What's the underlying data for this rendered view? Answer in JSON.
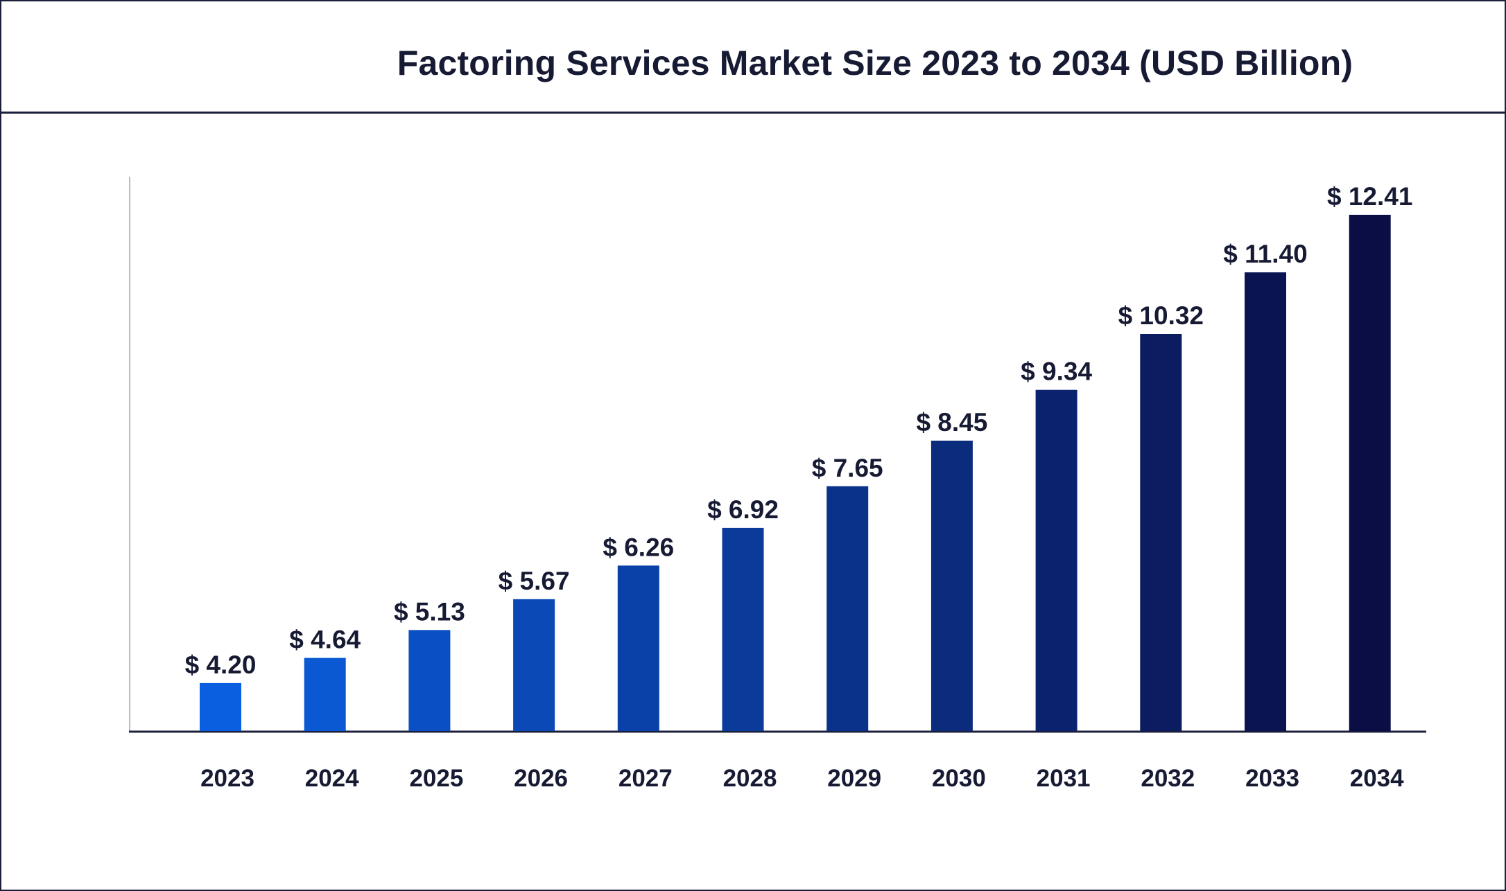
{
  "chart_data": {
    "type": "bar",
    "title": "Factoring Services Market Size 2023 to 2034 (USD Billion)",
    "xlabel": "",
    "ylabel": "",
    "categories": [
      "2023",
      "2024",
      "2025",
      "2026",
      "2027",
      "2028",
      "2029",
      "2030",
      "2031",
      "2032",
      "2033",
      "2034"
    ],
    "values": [
      4.2,
      4.64,
      5.13,
      5.67,
      6.26,
      6.92,
      7.65,
      8.45,
      9.34,
      10.32,
      11.4,
      12.41
    ],
    "value_labels": [
      "$ 4.20",
      "$ 4.64",
      "$ 5.13",
      "$ 5.67",
      "$ 6.26",
      "$ 6.92",
      "$ 7.65",
      "$ 8.45",
      "$ 9.34",
      "$ 10.32",
      "$ 11.40",
      "$ 12.41"
    ],
    "ylim": [
      3.36,
      12.41
    ],
    "grid": false,
    "legend": "none",
    "colors": {
      "bar_start": "#0a5fe0",
      "bar_end": "#0b0d45",
      "text": "#161a33",
      "axis": "#1b1f3a"
    }
  }
}
